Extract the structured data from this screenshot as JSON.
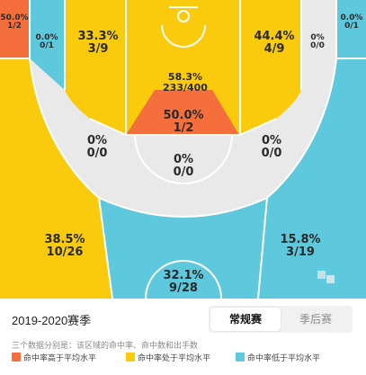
{
  "colors": {
    "above": "#f46f3c",
    "average": "#f9cb0c",
    "below": "#5ec8dd",
    "neutral": "#e9e9e9",
    "line": "#ffffff"
  },
  "zones": {
    "left_corner": {
      "pct": "50.0%",
      "made": "1/2",
      "level": "above"
    },
    "left_wing_mid": {
      "pct": "0.0%",
      "made": "0/1",
      "level": "below"
    },
    "left_baseline_mid": {
      "pct": "33.3%",
      "made": "3/9",
      "level": "average"
    },
    "paint": {
      "pct": "58.3%",
      "made": "233/400",
      "level": "average"
    },
    "right_baseline_mid": {
      "pct": "44.4%",
      "made": "4/9",
      "level": "average"
    },
    "right_wing_mid": {
      "pct": "0%",
      "made": "0/0",
      "level": "neutral"
    },
    "right_corner": {
      "pct": "0.0%",
      "made": "0/1",
      "level": "below"
    },
    "free_throw": {
      "pct": "50.0%",
      "made": "1/2",
      "level": "above"
    },
    "left_elbow": {
      "pct": "0%",
      "made": "0/0",
      "level": "neutral"
    },
    "right_elbow": {
      "pct": "0%",
      "made": "0/0",
      "level": "neutral"
    },
    "top_mid": {
      "pct": "0%",
      "made": "0/0",
      "level": "neutral"
    },
    "left_three": {
      "pct": "38.5%",
      "made": "10/26",
      "level": "average"
    },
    "right_three": {
      "pct": "15.8%",
      "made": "3/19",
      "level": "below"
    },
    "top_three": {
      "pct": "32.1%",
      "made": "9/28",
      "level": "below"
    }
  },
  "season": {
    "label": "2019-2020赛季"
  },
  "tabs": {
    "regular": "常规赛",
    "playoffs": "季后赛"
  },
  "description": "三个数据分别是：该区域的命中率、命中数和出手数",
  "legend": {
    "above": "命中率高于平均水平",
    "average": "命中率处于平均水平",
    "below": "命中率低于平均水平"
  }
}
